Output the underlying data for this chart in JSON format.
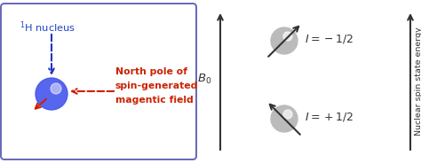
{
  "bg_color": "#ffffff",
  "box_edge_color": "#6666bb",
  "box_bg": "#ffffff",
  "nucleus_color_blue": "#4455ee",
  "nucleus_color_gray": "#bbbbbb",
  "arrow_blue": "#2233bb",
  "arrow_red": "#cc2200",
  "text_red": "#cc2200",
  "text_blue": "#2244cc",
  "text_dark": "#333333",
  "h_nucleus_label": "$^1$H nucleus",
  "north_pole_label_1": "North pole of",
  "north_pole_label_2": "spin-generated",
  "north_pole_label_3": "magentic field",
  "b0_label": "$B_0$",
  "i_minus_label": "$I = -1/2$",
  "i_plus_label": "$I = +1/2$",
  "y_axis_label": "Nuclear spin state energy",
  "figsize": [
    4.74,
    1.84
  ],
  "dpi": 100
}
